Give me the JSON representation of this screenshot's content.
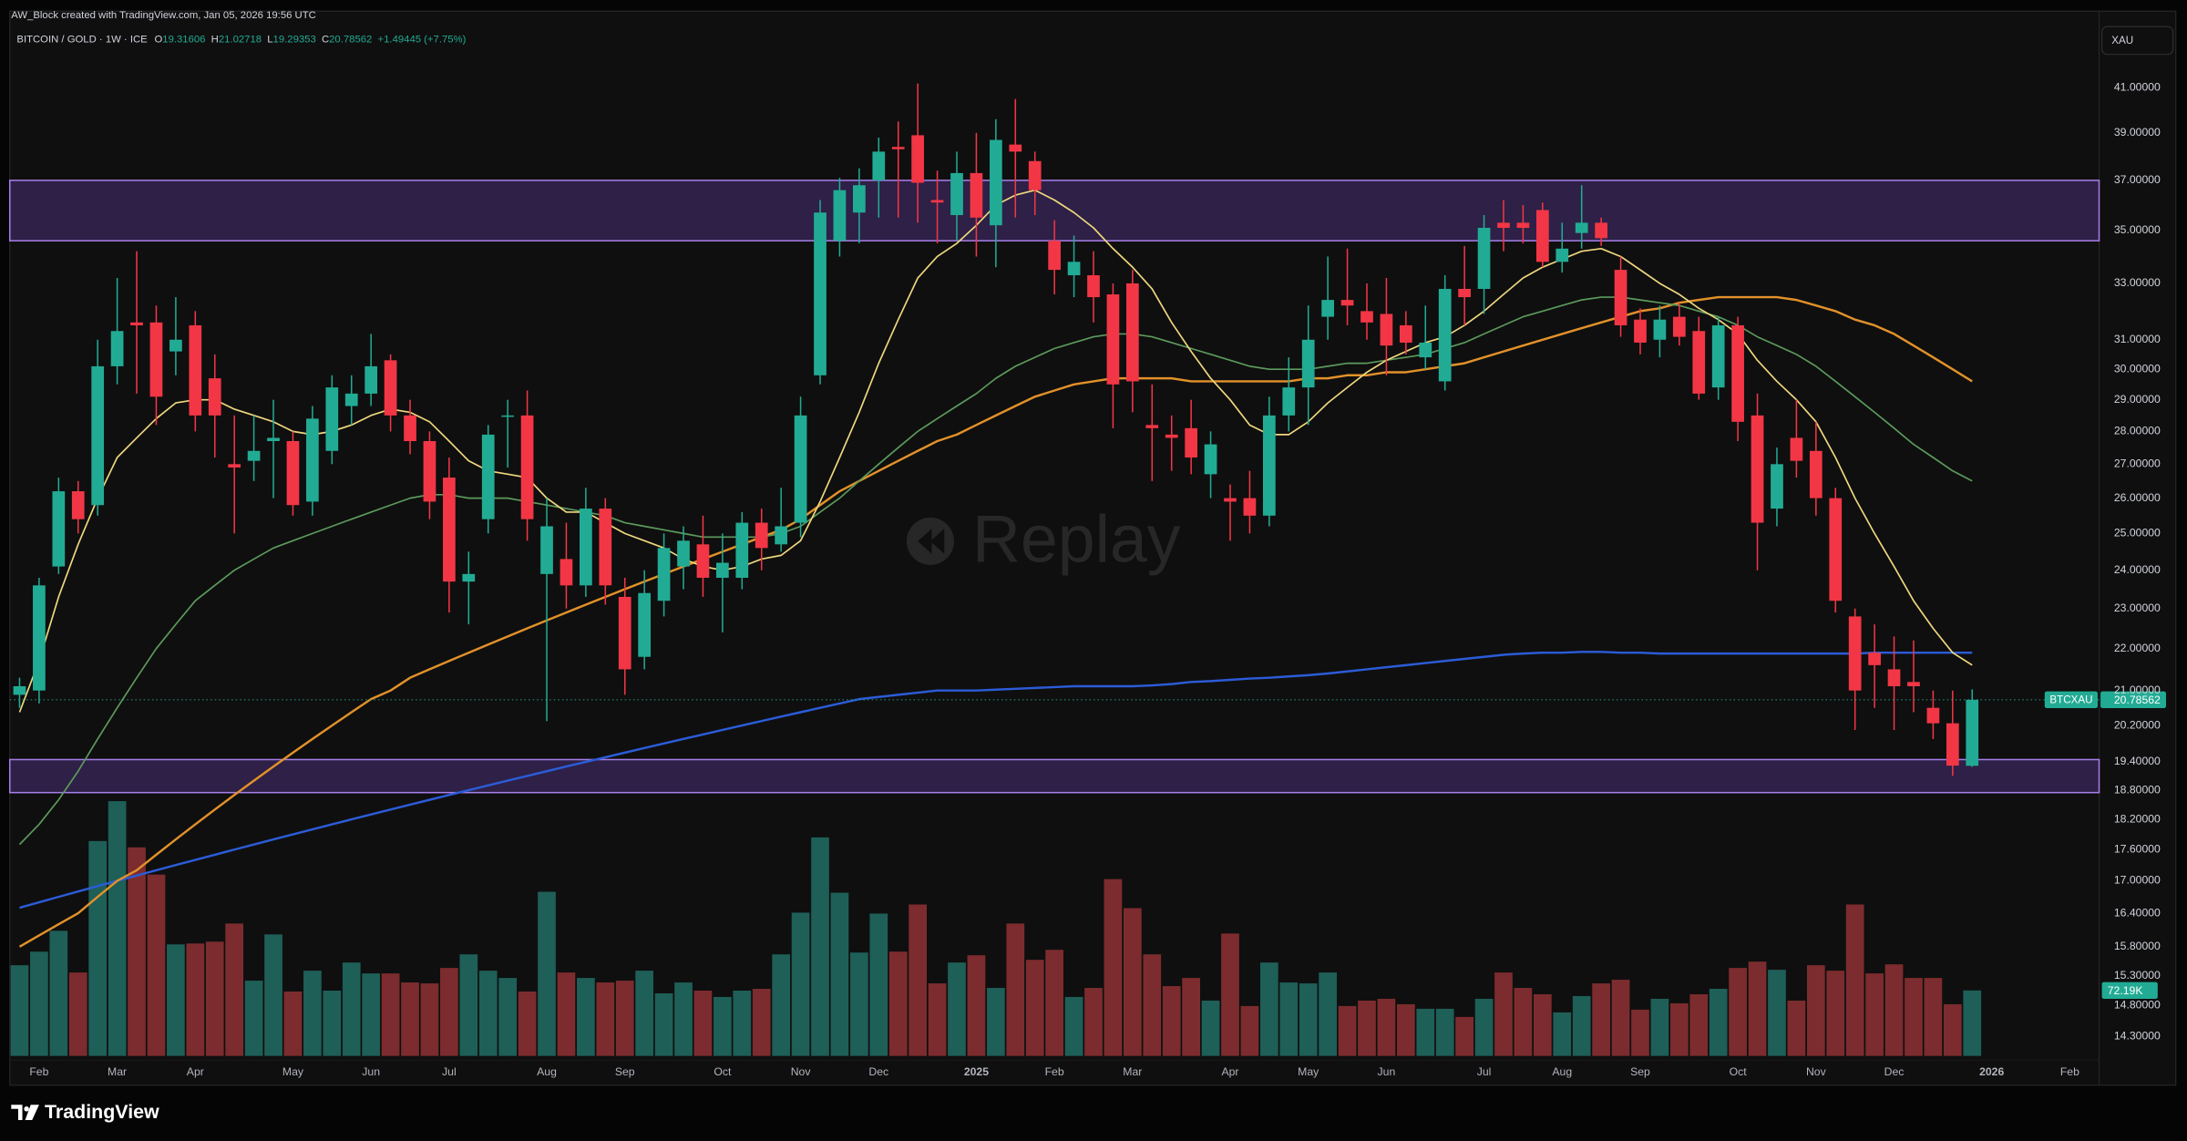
{
  "chart_data": {
    "type": "candlestick",
    "created": "AW_Block created with TradingView.com, Jan 05, 2026 19:56 UTC",
    "title": "BITCOIN / GOLD · 1W · ICE",
    "legend_labels": {
      "open": "O",
      "high": "H",
      "low": "L",
      "close": "C"
    },
    "change": "+1.49445 (+7.75%)",
    "currency": "XAU",
    "symbol": "BTCXAU",
    "watermark": "Replay",
    "brand": "TradingView",
    "log_scale": true,
    "grid": false,
    "up_color": "#22ab94",
    "down_color": "#f23645",
    "volume_up_color": "#1e5f58",
    "volume_down_color": "#7c2c2e",
    "ylim": [
      13.57,
      42.16
    ],
    "yticks": [
      {
        "value": 41,
        "label": "41.00000"
      },
      {
        "value": 39,
        "label": "39.00000"
      },
      {
        "value": 37,
        "label": "37.00000"
      },
      {
        "value": 35,
        "label": "35.00000"
      },
      {
        "value": 33,
        "label": "33.00000"
      },
      {
        "value": 31,
        "label": "31.00000"
      },
      {
        "value": 30,
        "label": "30.00000"
      },
      {
        "value": 29,
        "label": "29.00000"
      },
      {
        "value": 28,
        "label": "28.00000"
      },
      {
        "value": 27,
        "label": "27.00000"
      },
      {
        "value": 26,
        "label": "26.00000"
      },
      {
        "value": 25,
        "label": "25.00000"
      },
      {
        "value": 24,
        "label": "24.00000"
      },
      {
        "value": 23,
        "label": "23.00000"
      },
      {
        "value": 22,
        "label": "22.00000"
      },
      {
        "value": 21,
        "label": "21.00000"
      },
      {
        "value": 20.2,
        "label": "20.20000"
      },
      {
        "value": 19.4,
        "label": "19.40000"
      },
      {
        "value": 18.8,
        "label": "18.80000"
      },
      {
        "value": 18.2,
        "label": "18.20000"
      },
      {
        "value": 17.6,
        "label": "17.60000"
      },
      {
        "value": 17,
        "label": "17.00000"
      },
      {
        "value": 16.4,
        "label": "16.40000"
      },
      {
        "value": 15.8,
        "label": "15.80000"
      },
      {
        "value": 15.3,
        "label": "15.30000"
      },
      {
        "value": 14.8,
        "label": "14.80000"
      },
      {
        "value": 14.3,
        "label": "14.30000"
      }
    ],
    "zones": [
      {
        "low": 34.6,
        "high": 37.0,
        "color": "#2e2046",
        "border": "#a57ee8"
      },
      {
        "low": 18.75,
        "high": 19.45,
        "color": "#2e2046",
        "border": "#a57ee8"
      }
    ],
    "categories": [
      null,
      "Feb",
      null,
      null,
      null,
      "Mar",
      null,
      null,
      null,
      "Apr",
      null,
      null,
      null,
      null,
      "May",
      null,
      null,
      null,
      "Jun",
      null,
      null,
      null,
      "Jul",
      null,
      null,
      null,
      null,
      "Aug",
      null,
      null,
      null,
      "Sep",
      null,
      null,
      null,
      null,
      "Oct",
      null,
      null,
      null,
      "Nov",
      null,
      null,
      null,
      "Dec",
      null,
      null,
      null,
      null,
      "2025",
      null,
      null,
      null,
      "Feb",
      null,
      null,
      null,
      "Mar",
      null,
      null,
      null,
      null,
      "Apr",
      null,
      null,
      null,
      "May",
      null,
      null,
      null,
      "Jun",
      null,
      null,
      null,
      null,
      "Jul",
      null,
      null,
      null,
      "Aug",
      null,
      null,
      null,
      "Sep",
      null,
      null,
      null,
      null,
      "Oct",
      null,
      null,
      null,
      "Nov",
      null,
      null,
      null,
      "Dec",
      null,
      null,
      null,
      null,
      "2026",
      null,
      null,
      null,
      "Feb",
      null
    ],
    "open": [
      20.9,
      21.0,
      24.1,
      26.2,
      25.8,
      30.1,
      31.6,
      31.6,
      30.6,
      31.5,
      29.7,
      27.0,
      27.1,
      27.7,
      27.7,
      25.9,
      27.4,
      28.8,
      29.2,
      30.3,
      28.5,
      27.7,
      26.6,
      23.7,
      25.4,
      28.5,
      28.5,
      23.9,
      24.3,
      23.6,
      25.7,
      23.3,
      21.8,
      23.2,
      24.1,
      24.7,
      23.8,
      23.8,
      25.3,
      24.7,
      25.3,
      29.8,
      34.6,
      35.7,
      37.0,
      38.4,
      38.9,
      36.2,
      35.6,
      37.3,
      35.2,
      38.5,
      37.8,
      34.6,
      33.3,
      33.3,
      32.6,
      33.0,
      28.2,
      27.9,
      28.1,
      26.7,
      26.0,
      26.0,
      25.5,
      28.5,
      29.4,
      31.8,
      32.4,
      32.0,
      31.9,
      31.5,
      30.4,
      29.6,
      32.8,
      32.8,
      35.3,
      35.3,
      35.8,
      33.8,
      34.9,
      35.3,
      33.5,
      31.7,
      31.0,
      31.8,
      31.3,
      29.4,
      31.5,
      28.5,
      25.7,
      27.8,
      27.4,
      26.0,
      22.8,
      21.9,
      21.5,
      21.2,
      20.6,
      20.25,
      19.31606,
      null,
      null,
      null,
      null,
      null,
      null
    ],
    "high": [
      21.3,
      23.8,
      26.6,
      26.5,
      31.0,
      33.2,
      34.2,
      32.2,
      32.5,
      32.0,
      30.5,
      28.5,
      28.5,
      29.0,
      28.0,
      28.8,
      29.8,
      29.8,
      31.2,
      30.5,
      29.0,
      28.0,
      27.2,
      24.5,
      28.2,
      29.0,
      29.3,
      26.0,
      25.3,
      26.3,
      26.0,
      23.8,
      24.0,
      25.0,
      25.2,
      25.5,
      25.0,
      25.6,
      25.7,
      26.3,
      29.1,
      36.2,
      37.1,
      37.5,
      38.8,
      39.5,
      41.2,
      37.4,
      38.2,
      39.0,
      39.6,
      40.5,
      38.2,
      35.4,
      34.8,
      34.2,
      33.0,
      33.5,
      29.5,
      28.5,
      29.0,
      28.0,
      26.4,
      26.8,
      29.1,
      30.4,
      32.2,
      34.0,
      34.3,
      33.0,
      33.2,
      32.0,
      32.2,
      33.3,
      34.4,
      35.6,
      36.2,
      36.0,
      36.1,
      35.3,
      36.8,
      35.5,
      34.0,
      32.1,
      32.2,
      32.3,
      31.8,
      31.8,
      31.8,
      29.2,
      27.5,
      29.0,
      28.3,
      26.3,
      23.0,
      22.6,
      22.3,
      22.2,
      21.0,
      21.0,
      21.02718,
      null,
      null,
      null,
      null,
      null,
      null
    ],
    "low": [
      20.6,
      20.7,
      23.9,
      25.0,
      25.5,
      29.5,
      29.2,
      28.2,
      29.8,
      28.0,
      27.2,
      25.0,
      26.5,
      26.0,
      25.5,
      25.5,
      27.0,
      28.2,
      28.8,
      28.0,
      27.3,
      25.4,
      22.9,
      22.6,
      25.0,
      26.9,
      24.8,
      20.3,
      23.0,
      23.3,
      23.1,
      20.9,
      21.5,
      22.8,
      23.5,
      23.3,
      22.4,
      23.5,
      24.0,
      24.5,
      24.9,
      29.5,
      34.0,
      34.5,
      35.5,
      35.5,
      35.3,
      34.5,
      34.6,
      34.0,
      33.6,
      35.5,
      35.6,
      32.6,
      32.5,
      31.6,
      28.1,
      28.6,
      26.5,
      26.8,
      26.7,
      26.0,
      24.8,
      25.0,
      25.2,
      28.0,
      28.2,
      31.0,
      31.5,
      31.0,
      29.8,
      30.5,
      30.0,
      29.3,
      31.5,
      31.9,
      34.2,
      34.5,
      33.6,
      33.4,
      34.3,
      34.4,
      31.1,
      30.5,
      30.4,
      30.8,
      29.0,
      29.0,
      27.7,
      24.0,
      25.2,
      26.6,
      25.5,
      22.9,
      20.1,
      20.6,
      20.1,
      20.5,
      19.9,
      19.1,
      19.29353,
      null,
      null,
      null,
      null,
      null,
      null
    ],
    "close": [
      21.1,
      23.6,
      26.2,
      25.4,
      30.1,
      31.3,
      31.5,
      29.1,
      31.0,
      28.5,
      28.5,
      26.9,
      27.4,
      27.8,
      25.8,
      28.4,
      29.4,
      29.2,
      30.1,
      28.5,
      27.7,
      25.9,
      23.7,
      23.9,
      27.9,
      28.5,
      25.4,
      25.2,
      23.6,
      25.7,
      23.6,
      21.5,
      23.4,
      24.6,
      24.8,
      23.8,
      24.2,
      25.3,
      24.6,
      25.2,
      28.5,
      35.7,
      36.6,
      36.8,
      38.2,
      38.3,
      36.9,
      36.1,
      37.3,
      35.5,
      38.7,
      38.2,
      36.6,
      33.5,
      33.8,
      32.5,
      29.5,
      29.6,
      28.1,
      27.8,
      27.2,
      27.6,
      25.9,
      25.5,
      28.5,
      29.4,
      31.0,
      32.4,
      32.2,
      31.6,
      30.8,
      30.9,
      30.9,
      32.8,
      32.5,
      35.1,
      35.1,
      35.1,
      33.8,
      34.3,
      35.3,
      34.7,
      31.5,
      30.9,
      31.7,
      31.1,
      29.2,
      31.5,
      28.3,
      25.3,
      27.0,
      27.1,
      26.0,
      23.2,
      21.0,
      21.6,
      21.1,
      21.1,
      20.25,
      19.32,
      20.78562,
      null,
      null,
      null,
      null,
      null,
      null
    ],
    "volume": [
      100,
      115,
      138,
      92,
      237,
      281,
      230,
      200,
      123,
      124,
      126,
      146,
      83,
      134,
      71,
      94,
      72,
      103,
      91,
      91,
      81,
      80,
      97,
      112,
      94,
      86,
      71,
      181,
      92,
      86,
      81,
      83,
      94,
      69,
      81,
      72,
      65,
      72,
      74,
      112,
      158,
      241,
      180,
      114,
      157,
      115,
      167,
      80,
      103,
      111,
      75,
      146,
      106,
      117,
      65,
      75,
      195,
      163,
      112,
      77,
      86,
      61,
      135,
      55,
      103,
      81,
      80,
      92,
      55,
      61,
      63,
      57,
      52,
      52,
      43,
      63,
      92,
      75,
      68,
      48,
      66,
      80,
      84,
      51,
      63,
      58,
      68,
      74,
      97,
      104,
      95,
      61,
      100,
      94,
      167,
      91,
      101,
      86,
      86,
      57,
      72.19,
      null,
      null,
      null,
      null,
      null,
      null
    ],
    "volume_label": "72.19K",
    "volume_ylim": [
      0,
      400
    ],
    "moving_averages": [
      {
        "color": "#2b5cd8",
        "values": [
          16.5,
          16.6,
          16.7,
          16.8,
          16.9,
          17.0,
          17.1,
          17.2,
          17.3,
          17.4,
          17.5,
          17.6,
          17.7,
          17.8,
          17.9,
          18.0,
          18.1,
          18.2,
          18.3,
          18.4,
          18.5,
          18.6,
          18.7,
          18.8,
          18.9,
          19.0,
          19.1,
          19.2,
          19.3,
          19.4,
          19.5,
          19.6,
          19.7,
          19.8,
          19.9,
          20.0,
          20.1,
          20.2,
          20.3,
          20.4,
          20.5,
          20.6,
          20.7,
          20.8,
          20.85,
          20.9,
          20.95,
          21.0,
          21.0,
          21.0,
          21.02,
          21.04,
          21.06,
          21.08,
          21.1,
          21.1,
          21.1,
          21.1,
          21.12,
          21.15,
          21.2,
          21.22,
          21.25,
          21.28,
          21.3,
          21.33,
          21.36,
          21.4,
          21.45,
          21.5,
          21.55,
          21.6,
          21.65,
          21.7,
          21.75,
          21.8,
          21.85,
          21.88,
          21.9,
          21.9,
          21.92,
          21.92,
          21.9,
          21.9,
          21.88,
          21.88,
          21.88,
          21.88,
          21.88,
          21.88,
          21.88,
          21.88,
          21.88,
          21.88,
          21.88,
          21.9,
          21.9,
          21.9,
          21.9,
          21.9,
          21.9,
          null,
          null,
          null,
          null,
          null,
          null
        ]
      },
      {
        "color": "#e2912a",
        "values": [
          15.8,
          16.0,
          16.2,
          16.4,
          16.7,
          17.0,
          17.2,
          17.5,
          17.8,
          18.1,
          18.4,
          18.7,
          19.0,
          19.3,
          19.6,
          19.9,
          20.2,
          20.5,
          20.8,
          21.0,
          21.3,
          21.5,
          21.7,
          21.9,
          22.1,
          22.3,
          22.5,
          22.7,
          22.9,
          23.1,
          23.3,
          23.5,
          23.7,
          23.9,
          24.1,
          24.3,
          24.5,
          24.7,
          24.9,
          25.1,
          25.4,
          25.8,
          26.2,
          26.5,
          26.8,
          27.1,
          27.4,
          27.7,
          27.9,
          28.2,
          28.5,
          28.8,
          29.1,
          29.3,
          29.5,
          29.6,
          29.7,
          29.7,
          29.7,
          29.7,
          29.6,
          29.6,
          29.6,
          29.6,
          29.6,
          29.6,
          29.7,
          29.7,
          29.8,
          29.8,
          29.9,
          29.9,
          30.0,
          30.1,
          30.2,
          30.4,
          30.6,
          30.8,
          31.0,
          31.2,
          31.4,
          31.6,
          31.8,
          32.0,
          32.1,
          32.3,
          32.4,
          32.5,
          32.5,
          32.5,
          32.5,
          32.4,
          32.2,
          32.0,
          31.7,
          31.5,
          31.2,
          30.8,
          30.4,
          30.0,
          29.6,
          null,
          null,
          null,
          null,
          null,
          null
        ]
      },
      {
        "color": "#5c9a5c",
        "values": [
          17.7,
          18.1,
          18.6,
          19.2,
          19.9,
          20.6,
          21.3,
          22.0,
          22.6,
          23.2,
          23.6,
          24.0,
          24.3,
          24.6,
          24.8,
          25.0,
          25.2,
          25.4,
          25.6,
          25.8,
          26.0,
          26.1,
          26.1,
          26.0,
          26.0,
          26.0,
          25.9,
          25.8,
          25.7,
          25.6,
          25.5,
          25.3,
          25.2,
          25.1,
          25.0,
          24.9,
          24.9,
          24.9,
          24.9,
          25.0,
          25.2,
          25.6,
          26.0,
          26.5,
          27.0,
          27.5,
          28.0,
          28.4,
          28.8,
          29.2,
          29.7,
          30.1,
          30.4,
          30.7,
          30.9,
          31.1,
          31.2,
          31.2,
          31.1,
          30.9,
          30.7,
          30.5,
          30.3,
          30.1,
          30.0,
          30.0,
          30.0,
          30.1,
          30.2,
          30.2,
          30.3,
          30.4,
          30.5,
          30.7,
          30.9,
          31.2,
          31.5,
          31.8,
          32.0,
          32.2,
          32.4,
          32.5,
          32.5,
          32.4,
          32.3,
          32.2,
          32.0,
          31.8,
          31.5,
          31.1,
          30.8,
          30.5,
          30.1,
          29.6,
          29.1,
          28.6,
          28.1,
          27.6,
          27.2,
          26.8,
          26.5,
          null,
          null,
          null,
          null,
          null,
          null
        ]
      },
      {
        "color": "#efd77e",
        "values": [
          20.5,
          21.7,
          23.3,
          24.7,
          26.0,
          27.2,
          27.8,
          28.4,
          28.9,
          29.0,
          29.0,
          28.7,
          28.5,
          28.3,
          28.0,
          27.9,
          28.0,
          28.2,
          28.5,
          28.7,
          28.6,
          28.3,
          27.7,
          27.1,
          26.8,
          26.7,
          26.6,
          26.0,
          25.6,
          25.6,
          25.3,
          25.0,
          24.8,
          24.6,
          24.3,
          24.1,
          24.0,
          24.1,
          24.3,
          24.4,
          24.8,
          25.9,
          27.2,
          28.6,
          30.2,
          31.7,
          33.2,
          34.0,
          34.5,
          35.2,
          36.0,
          36.4,
          36.6,
          36.2,
          35.7,
          35.1,
          34.3,
          33.6,
          32.8,
          31.6,
          30.6,
          29.7,
          29.0,
          28.2,
          27.9,
          27.9,
          28.3,
          28.9,
          29.4,
          29.9,
          30.3,
          30.6,
          30.9,
          31.1,
          31.5,
          32.0,
          32.6,
          33.2,
          33.6,
          33.9,
          34.2,
          34.3,
          34.0,
          33.5,
          33.0,
          32.6,
          32.1,
          31.7,
          31.2,
          30.3,
          29.6,
          29.0,
          28.3,
          27.2,
          26.0,
          25.0,
          24.1,
          23.2,
          22.5,
          21.9,
          21.6,
          null,
          null,
          null,
          null,
          null,
          null
        ]
      }
    ]
  }
}
